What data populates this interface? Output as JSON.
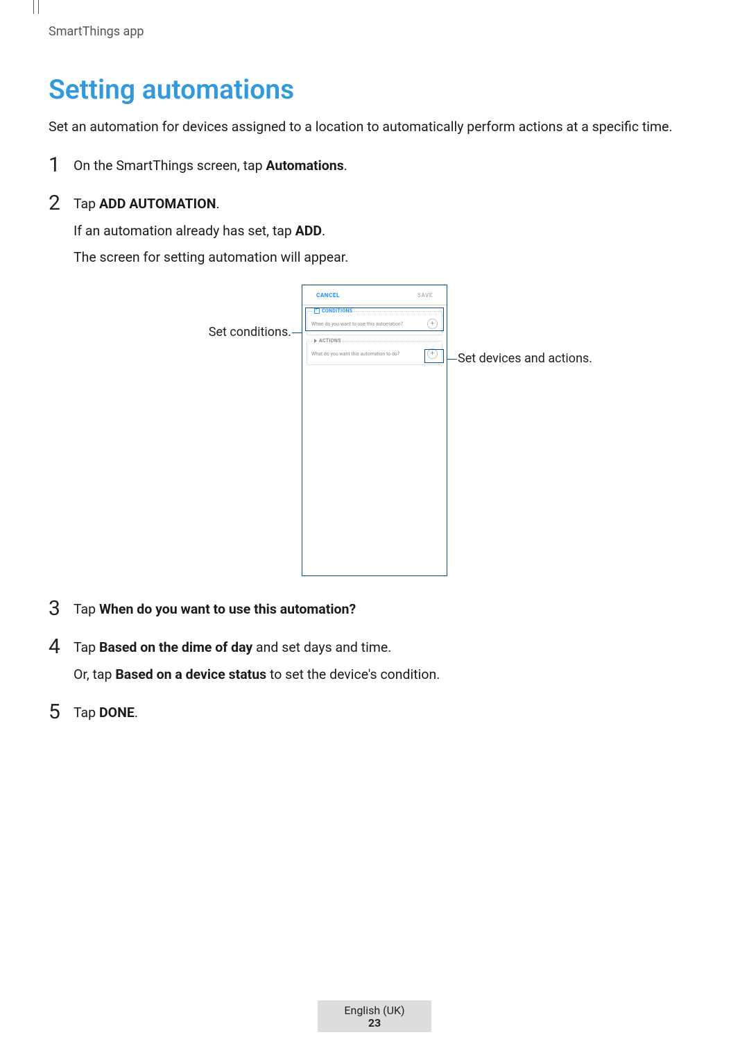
{
  "header": "SmartThings app",
  "title": "Setting automations",
  "intro": "Set an automation for devices assigned to a location to automatically perform actions at a specific time.",
  "steps": {
    "s1": {
      "line1_pre": "On the SmartThings screen, tap ",
      "line1_bold": "Automations",
      "line1_post": "."
    },
    "s2": {
      "line1_pre": "Tap ",
      "line1_bold": "ADD AUTOMATION",
      "line1_post": ".",
      "line2_pre": "If an automation already has set, tap ",
      "line2_bold": "ADD",
      "line2_post": ".",
      "line3": "The screen for setting automation will appear."
    },
    "s3": {
      "line1_pre": "Tap ",
      "line1_bold": "When do you want to use this automation?"
    },
    "s4": {
      "line1_pre": "Tap ",
      "line1_bold": "Based on the dime of day",
      "line1_post": " and set days and time.",
      "line2_pre": "Or, tap ",
      "line2_bold": "Based on a device status",
      "line2_post": " to set the device's condition."
    },
    "s5": {
      "line1_pre": "Tap ",
      "line1_bold": "DONE",
      "line1_post": "."
    }
  },
  "illustration": {
    "left_label": "Set conditions.",
    "right_label": "Set devices and actions.",
    "phone": {
      "cancel": "CANCEL",
      "save": "SAVE",
      "conditions_label": "CONDITIONS",
      "conditions_text": "When do you want to use this automation?",
      "actions_label": "ACTIONS",
      "actions_text": "What do you want this automation to do?"
    }
  },
  "footer": {
    "lang": "English (UK)",
    "page": "23"
  },
  "colors": {
    "title": "#3399dd",
    "callout_line": "#0a4d8c",
    "phone_accent": "#1a8cff"
  }
}
